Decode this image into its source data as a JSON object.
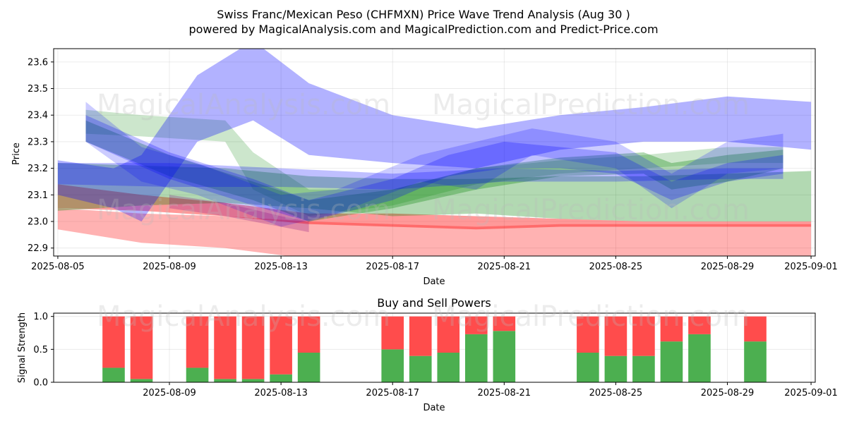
{
  "header": {
    "title_line1": "Swiss Franc/Mexican Peso (CHFMXN) Price Wave Trend Analysis (Aug 30 )",
    "title_line2": "powered by MagicalAnalysis.com and MagicalPrediction.com and Predict-Price.com"
  },
  "watermarks": [
    "MagicalAnalysis.com",
    "MagicalPrediction.com"
  ],
  "chart_data": [
    {
      "type": "area",
      "title": "",
      "xlabel": "Date",
      "ylabel": "Price",
      "x_domain": [
        "2025-08-05",
        "2025-09-01"
      ],
      "ylim": [
        22.87,
        23.65
      ],
      "x_ticks": [
        "2025-08-05",
        "2025-08-09",
        "2025-08-13",
        "2025-08-17",
        "2025-08-21",
        "2025-08-25",
        "2025-08-29",
        "2025-09-01"
      ],
      "y_ticks": [
        22.9,
        23.0,
        23.1,
        23.2,
        23.3,
        23.4,
        23.5,
        23.6
      ],
      "grid": true,
      "colors": {
        "red": "#ff0000",
        "green": "#008000",
        "blue": "#0000ff",
        "purple": "#800080"
      },
      "bands": [
        {
          "color": "red",
          "opacity": 0.3,
          "x": [
            "2025-08-05",
            "2025-08-08",
            "2025-08-11",
            "2025-08-14",
            "2025-08-17",
            "2025-08-20",
            "2025-08-23",
            "2025-08-26",
            "2025-08-29",
            "2025-09-01"
          ],
          "upper": [
            23.05,
            23.03,
            23.02,
            23.0,
            22.99,
            22.98,
            22.99,
            22.99,
            22.99,
            22.99
          ],
          "lower": [
            22.97,
            22.92,
            22.9,
            22.86,
            22.84,
            22.82,
            22.8,
            22.8,
            22.8,
            22.8
          ]
        },
        {
          "color": "red",
          "opacity": 0.4,
          "x": [
            "2025-08-05",
            "2025-08-08",
            "2025-08-11",
            "2025-08-14",
            "2025-08-17",
            "2025-08-20",
            "2025-08-23",
            "2025-08-26",
            "2025-08-29",
            "2025-09-01"
          ],
          "upper": [
            23.14,
            23.1,
            23.07,
            23.03,
            23.03,
            23.02,
            23.01,
            23.0,
            23.0,
            23.0
          ],
          "lower": [
            23.05,
            23.04,
            23.02,
            22.99,
            22.98,
            22.97,
            22.98,
            22.98,
            22.98,
            22.98
          ]
        },
        {
          "color": "green",
          "opacity": 0.3,
          "x": [
            "2025-08-05",
            "2025-08-08",
            "2025-08-11",
            "2025-08-14",
            "2025-08-17",
            "2025-08-20",
            "2025-08-23",
            "2025-08-26",
            "2025-08-29",
            "2025-09-01"
          ],
          "upper": [
            23.22,
            23.21,
            23.2,
            23.17,
            23.16,
            23.16,
            23.17,
            23.17,
            23.18,
            23.19
          ],
          "lower": [
            23.04,
            23.06,
            23.07,
            23.05,
            23.02,
            23.03,
            23.01,
            23.0,
            23.0,
            23.0
          ]
        },
        {
          "color": "green",
          "opacity": 0.2,
          "x": [
            "2025-08-06",
            "2025-08-08",
            "2025-08-11",
            "2025-08-12",
            "2025-08-14",
            "2025-08-17",
            "2025-08-20",
            "2025-08-23",
            "2025-08-26",
            "2025-08-29",
            "2025-08-31"
          ],
          "upper": [
            23.42,
            23.4,
            23.38,
            23.26,
            23.12,
            23.12,
            23.2,
            23.23,
            23.25,
            23.28,
            23.28
          ],
          "lower": [
            23.33,
            23.32,
            23.3,
            23.12,
            23.02,
            23.06,
            23.14,
            23.18,
            23.2,
            23.22,
            23.22
          ]
        },
        {
          "color": "green",
          "opacity": 0.3,
          "x": [
            "2025-08-06",
            "2025-08-09",
            "2025-08-12",
            "2025-08-14",
            "2025-08-17",
            "2025-08-20",
            "2025-08-23",
            "2025-08-26",
            "2025-08-27",
            "2025-08-29",
            "2025-08-31"
          ],
          "upper": [
            23.38,
            23.25,
            23.15,
            23.08,
            23.12,
            23.2,
            23.24,
            23.26,
            23.22,
            23.25,
            23.27
          ],
          "lower": [
            23.3,
            23.17,
            23.08,
            23.0,
            23.05,
            23.12,
            23.17,
            23.18,
            23.12,
            23.15,
            23.2
          ]
        },
        {
          "color": "blue",
          "opacity": 0.3,
          "x": [
            "2025-08-05",
            "2025-08-07",
            "2025-08-08",
            "2025-08-10",
            "2025-08-12",
            "2025-08-14",
            "2025-08-17",
            "2025-08-20",
            "2025-08-23",
            "2025-08-26",
            "2025-08-29",
            "2025-09-01"
          ],
          "upper": [
            23.23,
            23.2,
            23.25,
            23.55,
            23.68,
            23.52,
            23.4,
            23.35,
            23.4,
            23.43,
            23.47,
            23.45
          ],
          "lower": [
            23.1,
            23.05,
            23.0,
            23.3,
            23.38,
            23.25,
            23.22,
            23.2,
            23.27,
            23.3,
            23.3,
            23.27
          ]
        },
        {
          "color": "blue",
          "opacity": 0.25,
          "x": [
            "2025-08-05",
            "2025-08-09",
            "2025-08-13",
            "2025-08-17",
            "2025-08-21",
            "2025-08-25",
            "2025-08-29",
            "2025-08-31"
          ],
          "upper": [
            23.22,
            23.22,
            23.2,
            23.18,
            23.2,
            23.19,
            23.2,
            23.2
          ],
          "lower": [
            23.14,
            23.13,
            23.13,
            23.12,
            23.15,
            23.15,
            23.16,
            23.16
          ]
        },
        {
          "color": "blue",
          "opacity": 0.2,
          "x": [
            "2025-08-06",
            "2025-08-08",
            "2025-08-10",
            "2025-08-13",
            "2025-08-15",
            "2025-08-18",
            "2025-08-20",
            "2025-08-22",
            "2025-08-25",
            "2025-08-27",
            "2025-08-29",
            "2025-08-31"
          ],
          "upper": [
            23.45,
            23.28,
            23.22,
            23.1,
            23.12,
            23.25,
            23.3,
            23.35,
            23.3,
            23.18,
            23.3,
            23.33
          ],
          "lower": [
            23.3,
            23.15,
            23.1,
            22.98,
            23.03,
            23.15,
            23.12,
            23.25,
            23.2,
            23.05,
            23.18,
            23.2
          ]
        },
        {
          "color": "blue",
          "opacity": 0.25,
          "x": [
            "2025-08-06",
            "2025-08-09",
            "2025-08-12",
            "2025-08-14",
            "2025-08-17",
            "2025-08-19",
            "2025-08-21",
            "2025-08-23",
            "2025-08-25",
            "2025-08-27",
            "2025-08-29",
            "2025-08-31"
          ],
          "upper": [
            23.4,
            23.26,
            23.16,
            23.08,
            23.16,
            23.25,
            23.3,
            23.28,
            23.26,
            23.15,
            23.22,
            23.25
          ],
          "lower": [
            23.3,
            23.16,
            23.06,
            23.0,
            23.08,
            23.17,
            23.2,
            23.2,
            23.18,
            23.08,
            23.15,
            23.18
          ]
        },
        {
          "color": "purple",
          "opacity": 0.25,
          "x": [
            "2025-08-09",
            "2025-08-11",
            "2025-08-13",
            "2025-08-14"
          ],
          "upper": [
            23.1,
            23.07,
            23.02,
            23.0
          ],
          "lower": [
            23.05,
            23.02,
            22.98,
            22.96
          ]
        }
      ]
    },
    {
      "type": "bar",
      "title": "Buy and Sell Powers",
      "xlabel": "Date",
      "ylabel": "Signal Strength",
      "x_domain": [
        "2025-08-05",
        "2025-09-01"
      ],
      "ylim": [
        0,
        1.05
      ],
      "x_ticks": [
        "2025-08-09",
        "2025-08-13",
        "2025-08-17",
        "2025-08-21",
        "2025-08-25",
        "2025-08-29",
        "2025-09-01"
      ],
      "y_ticks": [
        0.0,
        0.5,
        1.0
      ],
      "grid": true,
      "colors": {
        "buy": "#4caf50",
        "sell": "#ff4c4c"
      },
      "series": [
        {
          "name": "buy",
          "values": [
            0.22,
            0.05,
            0.22,
            0.05,
            0.05,
            0.12,
            0.45,
            0.5,
            0.4,
            0.45,
            0.73,
            0.78,
            0.45,
            0.4,
            0.4,
            0.62,
            0.73,
            0.62
          ]
        },
        {
          "name": "sell",
          "values": [
            0.78,
            0.95,
            0.78,
            0.95,
            0.95,
            0.88,
            0.55,
            0.5,
            0.6,
            0.55,
            0.27,
            0.22,
            0.55,
            0.6,
            0.6,
            0.38,
            0.27,
            0.38
          ]
        }
      ],
      "categories": [
        "2025-08-07",
        "2025-08-08",
        "2025-08-10",
        "2025-08-11",
        "2025-08-12",
        "2025-08-13",
        "2025-08-14",
        "2025-08-17",
        "2025-08-18",
        "2025-08-19",
        "2025-08-20",
        "2025-08-21",
        "2025-08-24",
        "2025-08-25",
        "2025-08-26",
        "2025-08-27",
        "2025-08-28",
        "2025-08-30"
      ]
    }
  ]
}
